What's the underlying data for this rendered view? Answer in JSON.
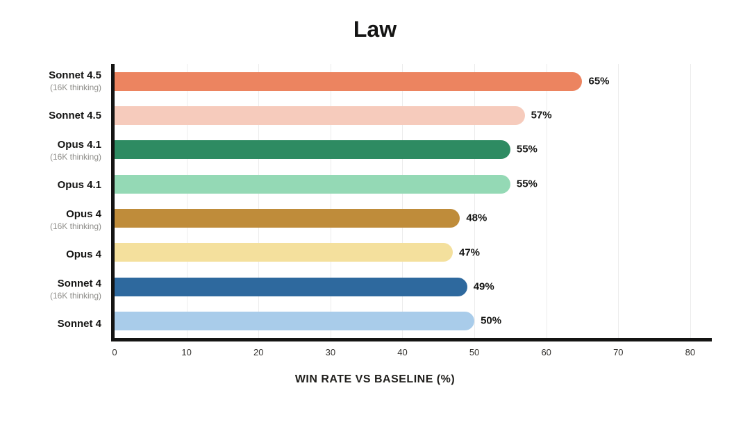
{
  "chart_data": {
    "type": "bar",
    "orientation": "horizontal",
    "title": "Law",
    "xlabel": "WIN RATE VS BASELINE (%)",
    "ylabel": "",
    "xlim": [
      0,
      83
    ],
    "xticks": [
      0,
      10,
      20,
      30,
      40,
      50,
      60,
      70,
      80
    ],
    "grid": true,
    "legend": false,
    "categories": [
      {
        "label": "Sonnet 4.5",
        "sublabel": "(16K thinking)"
      },
      {
        "label": "Sonnet 4.5",
        "sublabel": ""
      },
      {
        "label": "Opus 4.1",
        "sublabel": "(16K thinking)"
      },
      {
        "label": "Opus 4.1",
        "sublabel": ""
      },
      {
        "label": "Opus 4",
        "sublabel": "(16K thinking)"
      },
      {
        "label": "Opus 4",
        "sublabel": ""
      },
      {
        "label": "Sonnet 4",
        "sublabel": "(16K thinking)"
      },
      {
        "label": "Sonnet 4",
        "sublabel": ""
      }
    ],
    "values": [
      65,
      57,
      55,
      55,
      48,
      47,
      49,
      50
    ],
    "value_labels": [
      "65%",
      "57%",
      "55%",
      "55%",
      "48%",
      "47%",
      "49%",
      "50%"
    ],
    "colors": [
      "#EC8460",
      "#F6CBBC",
      "#2E8B62",
      "#94D9B5",
      "#BF8C3A",
      "#F4E09D",
      "#2E699E",
      "#A9CCEA"
    ],
    "axis_color": "#141413",
    "gridline_color": "#ECECEC",
    "background_color": "#FFFFFF"
  }
}
